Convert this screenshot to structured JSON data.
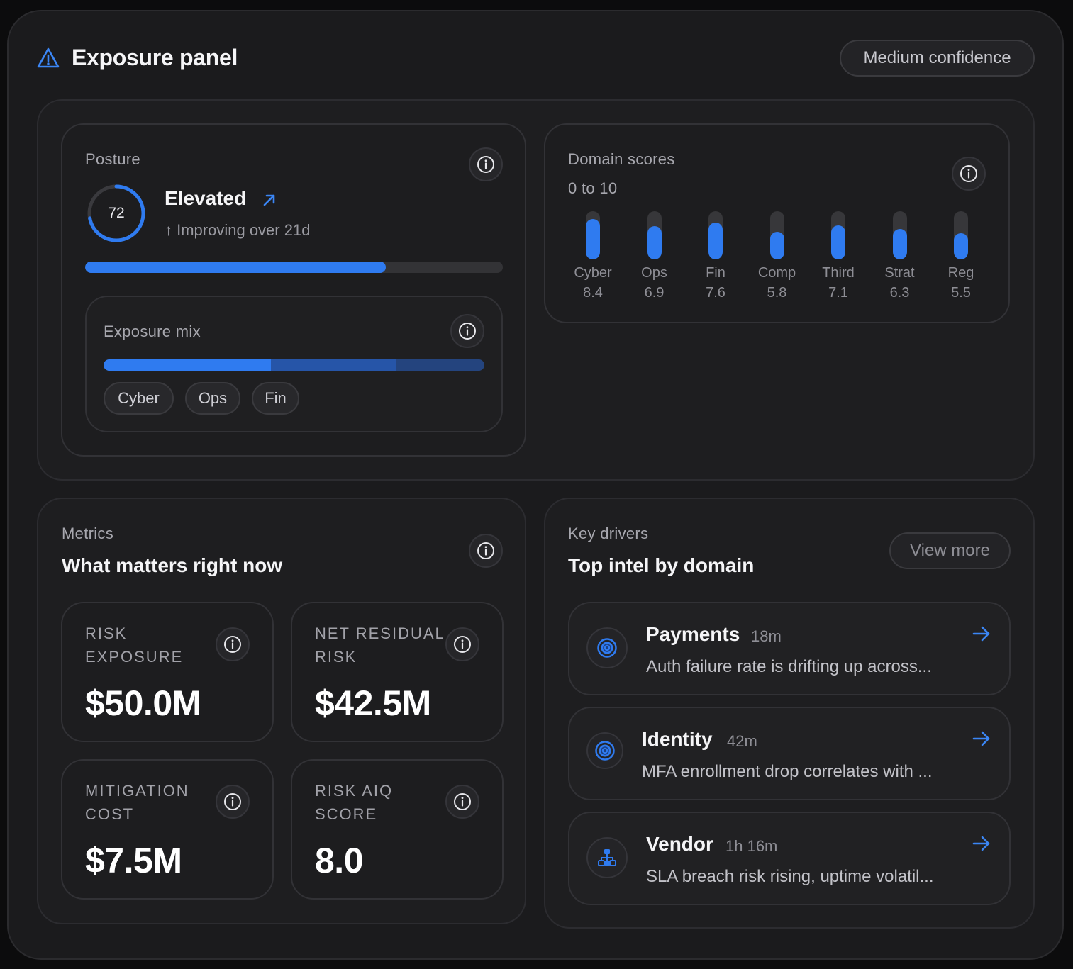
{
  "header": {
    "title": "Exposure panel",
    "confidence": "Medium confidence",
    "icon": "warning-triangle-icon"
  },
  "posture": {
    "label": "Posture",
    "score": "72",
    "score_value": 72,
    "status": "Elevated",
    "trend": "↑ Improving over 21d",
    "progress_pct": 72
  },
  "exposure_mix": {
    "label": "Exposure mix",
    "segments": [
      {
        "name": "Cyber",
        "pct": 44,
        "color": "#2f7bf0"
      },
      {
        "name": "Ops",
        "pct": 33,
        "color": "#2655a8"
      },
      {
        "name": "Fin",
        "pct": 23,
        "color": "#24447e"
      }
    ],
    "chips": [
      "Cyber",
      "Ops",
      "Fin"
    ]
  },
  "domain_scores": {
    "label": "Domain scores",
    "range": "0 to 10",
    "max": 10,
    "items": [
      {
        "name": "Cyber",
        "value": 8.4,
        "display": "8.4"
      },
      {
        "name": "Ops",
        "value": 6.9,
        "display": "6.9"
      },
      {
        "name": "Fin",
        "value": 7.6,
        "display": "7.6"
      },
      {
        "name": "Comp",
        "value": 5.8,
        "display": "5.8"
      },
      {
        "name": "Third",
        "value": 7.1,
        "display": "7.1"
      },
      {
        "name": "Strat",
        "value": 6.3,
        "display": "6.3"
      },
      {
        "name": "Reg",
        "value": 5.5,
        "display": "5.5"
      }
    ]
  },
  "metrics": {
    "label": "Metrics",
    "title": "What matters right now",
    "cards": [
      {
        "label": "RISK EXPOSURE",
        "value": "$50.0M"
      },
      {
        "label": "NET RESIDUAL RISK",
        "value": "$42.5M"
      },
      {
        "label": "MITIGATION COST",
        "value": "$7.5M"
      },
      {
        "label": "RISK AIQ SCORE",
        "value": "8.0"
      }
    ]
  },
  "drivers": {
    "label": "Key drivers",
    "title": "Top intel by domain",
    "view_more": "View more",
    "items": [
      {
        "title": "Payments",
        "time": "18m",
        "desc": "Auth failure rate is drifting up across...",
        "icon": "target-icon"
      },
      {
        "title": "Identity",
        "time": "42m",
        "desc": "MFA enrollment drop correlates with ...",
        "icon": "target-icon"
      },
      {
        "title": "Vendor",
        "time": "1h 16m",
        "desc": "SLA breach risk rising, uptime volatil...",
        "icon": "network-icon"
      }
    ]
  },
  "colors": {
    "accent": "#2f7bf0",
    "background": "#1b1b1d"
  }
}
